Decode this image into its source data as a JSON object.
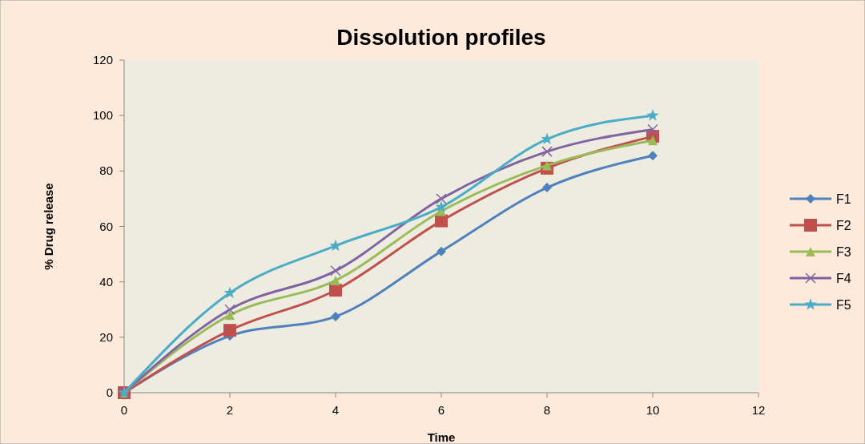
{
  "chart_data": {
    "type": "line",
    "title": "Dissolution profiles",
    "xlabel": "Time",
    "ylabel": "% Drug release",
    "x": [
      0,
      2,
      4,
      6,
      8,
      10
    ],
    "xlim": [
      0,
      12
    ],
    "xticks": [
      0,
      2,
      4,
      6,
      8,
      10,
      12
    ],
    "ylim": [
      0,
      120
    ],
    "yticks": [
      0,
      20,
      40,
      60,
      80,
      100,
      120
    ],
    "grid": false,
    "legend": "right",
    "series": [
      {
        "name": "F1",
        "color": "#4f81bd",
        "marker": "diamond",
        "values": [
          0,
          20.5,
          27.5,
          51,
          74,
          85.5
        ]
      },
      {
        "name": "F2",
        "color": "#c0504d",
        "marker": "square",
        "values": [
          0,
          22.5,
          37,
          62,
          81,
          92.5
        ]
      },
      {
        "name": "F3",
        "color": "#9bbb59",
        "marker": "triangle",
        "values": [
          0,
          28,
          40.5,
          65.5,
          82,
          91
        ]
      },
      {
        "name": "F4",
        "color": "#8064a2",
        "marker": "cross",
        "values": [
          0,
          30,
          44,
          70,
          87,
          95
        ]
      },
      {
        "name": "F5",
        "color": "#4bacc6",
        "marker": "star",
        "values": [
          0,
          36,
          53,
          67,
          91.5,
          100
        ]
      }
    ]
  }
}
